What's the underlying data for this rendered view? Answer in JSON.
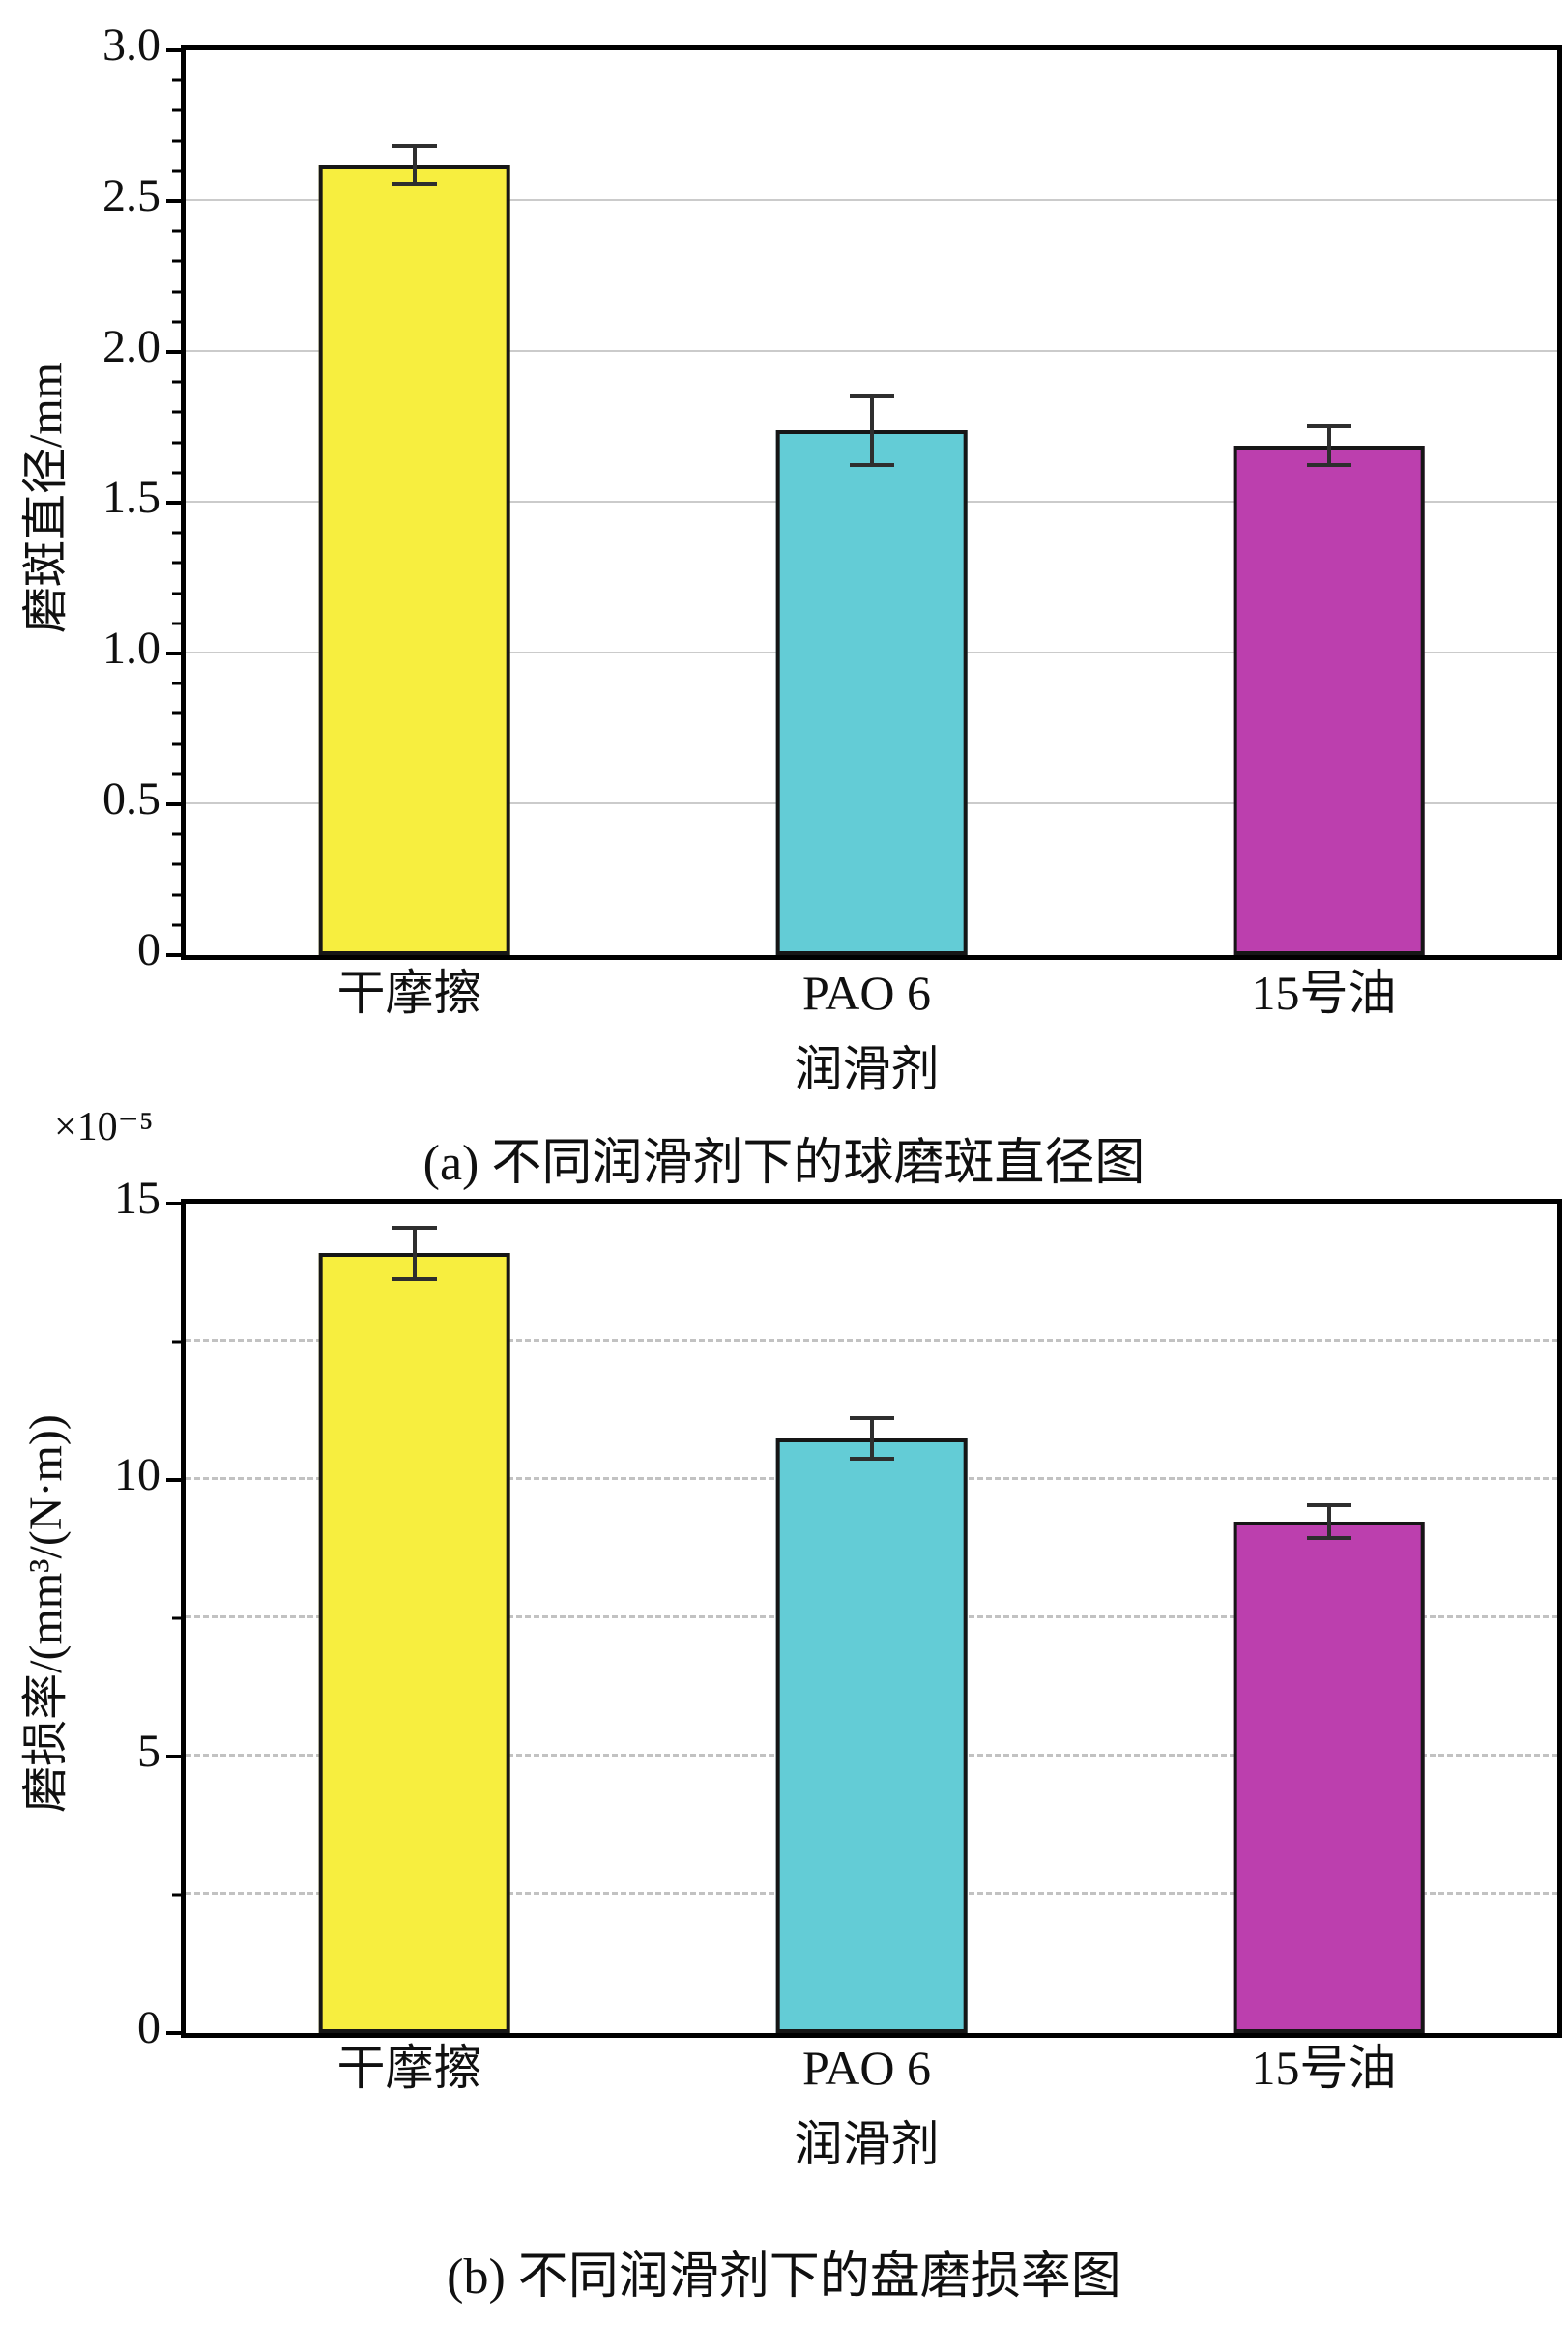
{
  "figure": {
    "captions": {
      "a": "(a) 不同润滑剂下的球磨斑直径图",
      "b": "(b) 不同润滑剂下的盘磨损率图"
    }
  },
  "chart_data": [
    {
      "id": "a",
      "type": "bar",
      "title": "(a) 不同润滑剂下的球磨斑直径图",
      "ylabel": "磨斑直径/mm",
      "xlabel": "润滑剂",
      "categories": [
        "干摩擦",
        "PAO 6",
        "15号油"
      ],
      "values": [
        2.62,
        1.74,
        1.69
      ],
      "errors": [
        0.07,
        0.12,
        0.07
      ],
      "ylim": [
        0,
        3.0
      ],
      "yticks": [
        0,
        0.5,
        1.0,
        1.5,
        2.0,
        2.5,
        3.0
      ],
      "ytick_labels": [
        "0",
        "0.5",
        "1.0",
        "1.5",
        "2.0",
        "2.5",
        "3.0"
      ],
      "gridlines": [
        0.5,
        1.0,
        1.5,
        2.0,
        2.5
      ],
      "grid_style": "solid",
      "minor_tick_step": 0.1,
      "bar_colors": [
        "#f7ee3f",
        "#63ccd6",
        "#bc3fae"
      ],
      "multiplier": ""
    },
    {
      "id": "b",
      "type": "bar",
      "title": "(b) 不同润滑剂下的盘磨损率图",
      "ylabel": "磨损率/(mm³/(N·m))",
      "xlabel": "润滑剂",
      "categories": [
        "干摩擦",
        "PAO 6",
        "15号油"
      ],
      "values": [
        14.1,
        10.75,
        9.25
      ],
      "errors": [
        0.5,
        0.4,
        0.33
      ],
      "ylim": [
        0,
        15
      ],
      "yticks": [
        0,
        5,
        10,
        15
      ],
      "ytick_labels": [
        "0",
        "5",
        "10",
        "15"
      ],
      "gridlines": [
        2.5,
        5,
        7.5,
        10,
        12.5
      ],
      "grid_style": "dashed",
      "minor_tick_step": 2.5,
      "bar_colors": [
        "#f7ee3f",
        "#63ccd6",
        "#bc3fae"
      ],
      "multiplier": "×10⁻⁵"
    }
  ]
}
